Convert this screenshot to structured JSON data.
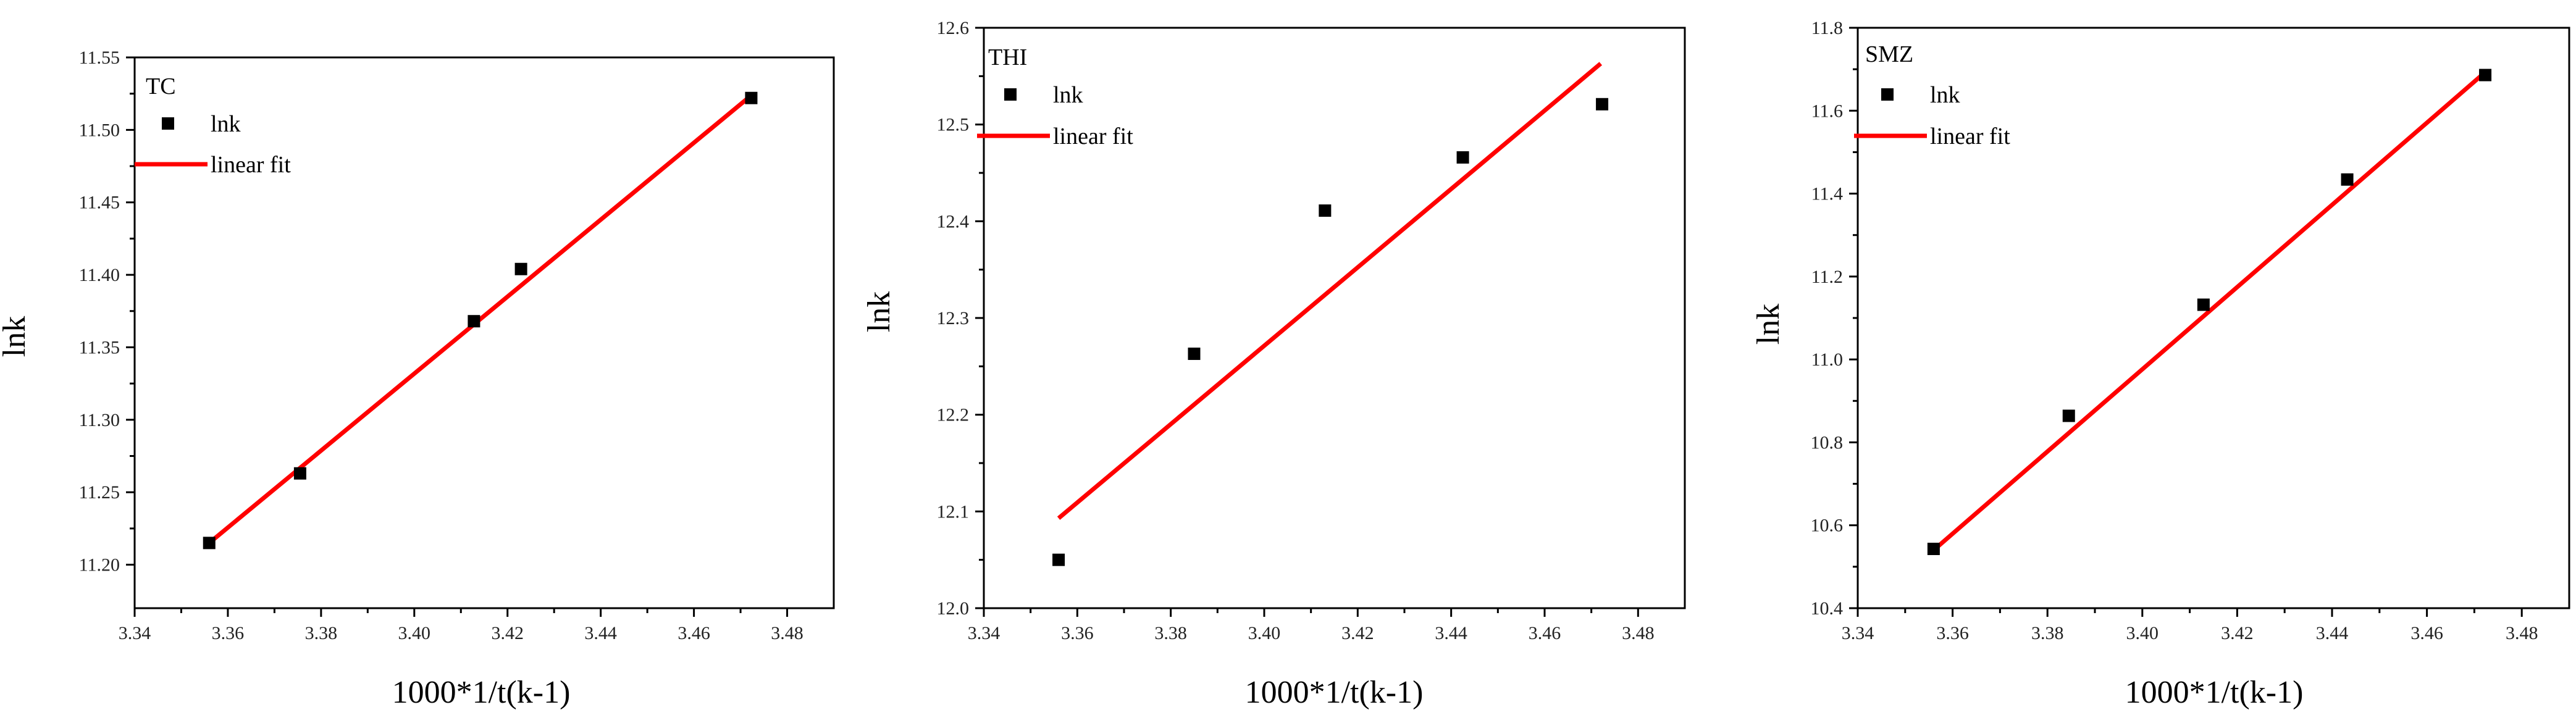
{
  "chart_data": [
    {
      "type": "scatter",
      "title": "TC",
      "xlabel": "1000*1/t(k-1)",
      "ylabel": "lnk",
      "xlim": [
        3.34,
        3.49
      ],
      "ylim": [
        11.17,
        11.55
      ],
      "xticks": [
        "3.34",
        "3.36",
        "3.38",
        "3.40",
        "3.42",
        "3.44",
        "3.46",
        "3.48"
      ],
      "yticks": [
        "11.20",
        "11.25",
        "11.30",
        "11.35",
        "11.40",
        "11.45",
        "11.50",
        "11.55"
      ],
      "series": [
        {
          "name": "lnk",
          "kind": "scatter",
          "color": "#000000",
          "x": [
            3.356,
            3.3755,
            3.4128,
            3.4229,
            3.4723
          ],
          "y": [
            11.215,
            11.263,
            11.368,
            11.404,
            11.522
          ]
        },
        {
          "name": "linear fit",
          "kind": "line",
          "color": "#ff0000",
          "x": [
            3.356,
            3.472
          ],
          "y": [
            11.215,
            11.523
          ]
        }
      ],
      "legend": [
        "lnk",
        "linear fit"
      ]
    },
    {
      "type": "scatter",
      "title": "THI",
      "xlabel": "1000*1/t(k-1)",
      "ylabel": "lnk",
      "xlim": [
        3.34,
        3.49
      ],
      "ylim": [
        12.0,
        12.6
      ],
      "xticks": [
        "3.34",
        "3.36",
        "3.38",
        "3.40",
        "3.42",
        "3.44",
        "3.46",
        "3.48"
      ],
      "yticks": [
        "12.0",
        "12.1",
        "12.2",
        "12.3",
        "12.4",
        "12.5",
        "12.6"
      ],
      "series": [
        {
          "name": "lnk",
          "kind": "scatter",
          "color": "#000000",
          "x": [
            3.356,
            3.385,
            3.413,
            3.4425,
            3.4723
          ],
          "y": [
            12.05,
            12.263,
            12.411,
            12.466,
            12.521
          ]
        },
        {
          "name": "linear fit",
          "kind": "line",
          "color": "#ff0000",
          "x": [
            3.356,
            3.472
          ],
          "y": [
            12.093,
            12.563
          ]
        }
      ],
      "legend": [
        "lnk",
        "linear fit"
      ]
    },
    {
      "type": "scatter",
      "title": "SMZ",
      "xlabel": "1000*1/t(k-1)",
      "ylabel": "lnk",
      "xlim": [
        3.34,
        3.49
      ],
      "ylim": [
        10.4,
        11.8
      ],
      "xticks": [
        "3.34",
        "3.36",
        "3.38",
        "3.40",
        "3.42",
        "3.44",
        "3.46",
        "3.48"
      ],
      "yticks": [
        "10.4",
        "10.6",
        "10.8",
        "11.0",
        "11.2",
        "11.4",
        "11.6",
        "11.8"
      ],
      "series": [
        {
          "name": "lnk",
          "kind": "scatter",
          "color": "#000000",
          "x": [
            3.356,
            3.3845,
            3.4129,
            3.4432,
            3.4723
          ],
          "y": [
            10.543,
            10.864,
            11.132,
            11.434,
            11.686
          ]
        },
        {
          "name": "linear fit",
          "kind": "line",
          "color": "#ff0000",
          "x": [
            3.356,
            3.472
          ],
          "y": [
            10.54,
            11.69
          ]
        }
      ],
      "legend": [
        "lnk",
        "linear fit"
      ]
    }
  ]
}
